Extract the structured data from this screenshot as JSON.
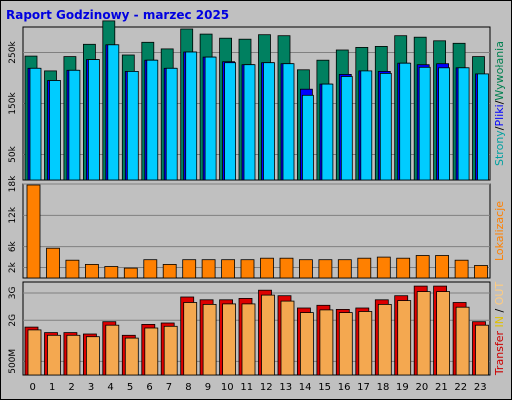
{
  "chart_data": {
    "title": "Raport Godzinowy -  marzec 2025",
    "type": "bar",
    "categories": [
      "0",
      "1",
      "2",
      "3",
      "4",
      "5",
      "6",
      "7",
      "8",
      "9",
      "10",
      "11",
      "12",
      "13",
      "14",
      "15",
      "16",
      "17",
      "18",
      "19",
      "20",
      "21",
      "22",
      "23"
    ],
    "panels": [
      {
        "id": "requests",
        "ylabel_parts": [
          {
            "text": "Strony",
            "color": "#00a0a0"
          },
          {
            "text": "/",
            "color": "#000000"
          },
          {
            "text": "Pliki",
            "color": "#0000ff"
          },
          {
            "text": "/",
            "color": "#000000"
          },
          {
            "text": "Wywołania",
            "color": "#008050"
          }
        ],
        "yticks": [
          {
            "label": "50k",
            "value": 50000
          },
          {
            "label": "150k",
            "value": 150000
          },
          {
            "label": "250k",
            "value": 250000
          }
        ],
        "ylim": [
          0,
          300000
        ],
        "series": [
          {
            "name": "Wywołania",
            "color": "#008060",
            "values": [
              243000,
              214000,
              242000,
              266000,
              312000,
              245000,
              270000,
              257000,
              296000,
              286000,
              278000,
              276000,
              285000,
              283000,
              216000,
              235000,
              255000,
              260000,
              262000,
              283000,
              280000,
              273000,
              268000,
              242000
            ]
          },
          {
            "name": "Pliki",
            "color": "#0000ff",
            "values": [
              219000,
              195000,
              215000,
              236000,
              265000,
              213000,
              235000,
              219000,
              251000,
              241000,
              232000,
              226000,
              230000,
              228000,
              178000,
              188000,
              207000,
              214000,
              213000,
              229000,
              226000,
              228000,
              220000,
              208000
            ]
          },
          {
            "name": "Strony",
            "color": "#00ccff",
            "values": [
              219000,
              195000,
              215000,
              236000,
              265000,
              213000,
              235000,
              219000,
              251000,
              241000,
              230000,
              226000,
              230000,
              228000,
              166000,
              188000,
              203000,
              214000,
              209000,
              229000,
              221000,
              220000,
              220000,
              208000
            ]
          }
        ]
      },
      {
        "id": "visits",
        "ylabel_parts": [
          {
            "text": "Lokalizacje",
            "color": "#ff8000"
          }
        ],
        "yticks": [
          {
            "label": "2k",
            "value": 2000
          },
          {
            "label": "6k",
            "value": 6000
          },
          {
            "label": "12k",
            "value": 12000
          },
          {
            "label": "18k",
            "value": 18000
          }
        ],
        "ylim": [
          0,
          18000
        ],
        "series": [
          {
            "name": "Lokalizacje",
            "color": "#ff8000",
            "values": [
              17800,
              5700,
              3400,
              2600,
              2200,
              1900,
              3500,
              2600,
              3500,
              3500,
              3500,
              3500,
              3800,
              3800,
              3500,
              3500,
              3500,
              3800,
              4000,
              3800,
              4300,
              4300,
              3400,
              2400
            ]
          }
        ]
      },
      {
        "id": "transfer",
        "ylabel_parts": [
          {
            "text": "Transfer",
            "color": "#cc0000"
          },
          {
            "text": " ",
            "color": "#000000"
          },
          {
            "text": "IN",
            "color": "#e0c000"
          },
          {
            "text": " / ",
            "color": "#000000"
          },
          {
            "text": "OUT",
            "color": "#ffcc80"
          }
        ],
        "yticks": [
          {
            "label": "500M",
            "value": 0.5
          },
          {
            "label": "2G",
            "value": 2.0
          },
          {
            "label": "3G",
            "value": 3.0
          }
        ],
        "ylim": [
          0,
          3.4
        ],
        "series": [
          {
            "name": "IN",
            "color": "#dd0000",
            "values": [
              1.75,
              1.55,
              1.55,
              1.5,
              1.95,
              1.45,
              1.85,
              1.9,
              2.85,
              2.75,
              2.75,
              2.8,
              3.1,
              2.9,
              2.45,
              2.55,
              2.4,
              2.45,
              2.75,
              2.9,
              3.25,
              3.25,
              2.65,
              1.95
            ]
          },
          {
            "name": "OUT",
            "color": "#f4a850",
            "values": [
              1.65,
              1.45,
              1.45,
              1.4,
              1.82,
              1.35,
              1.72,
              1.78,
              2.65,
              2.58,
              2.6,
              2.6,
              2.92,
              2.7,
              2.28,
              2.38,
              2.28,
              2.32,
              2.58,
              2.72,
              3.05,
              3.05,
              2.48,
              1.82
            ]
          }
        ]
      }
    ]
  }
}
